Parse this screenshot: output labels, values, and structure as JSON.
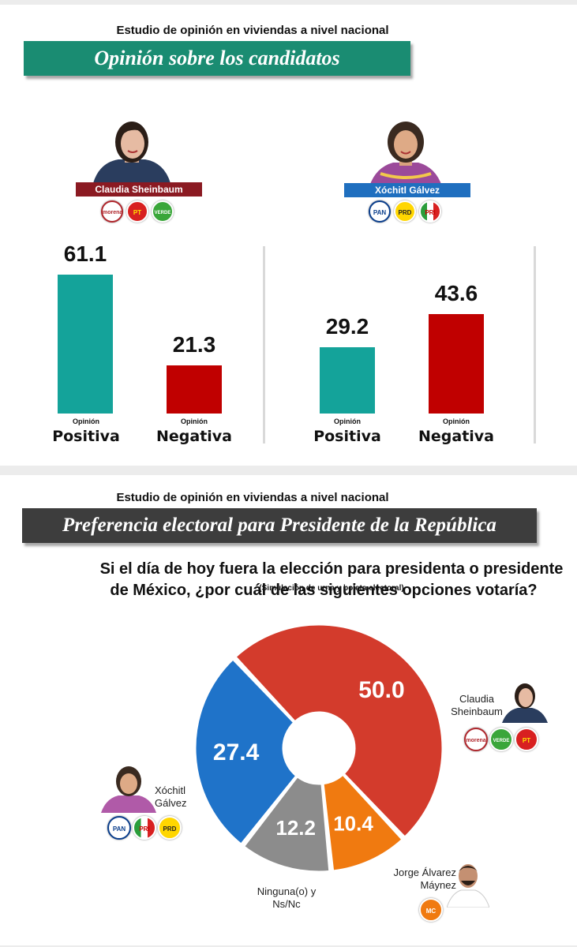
{
  "top": {
    "study_title": "Estudio de opinión en viviendas a nivel nacional",
    "banner_title": "Opinión sobre los candidatos",
    "banner_color": "#1a8c72",
    "candidates": [
      {
        "name": "Claudia Sheinbaum",
        "nameplate_color": "#8b1a22",
        "parties": [
          "morena",
          "PT",
          "VERDE"
        ]
      },
      {
        "name": "Xóchitl Gálvez",
        "nameplate_color": "#1f6fbf",
        "parties": [
          "PAN",
          "PRD",
          "PRI"
        ]
      }
    ],
    "category_small": "Opinión",
    "positive_label": "Positiva",
    "negative_label": "Negativa"
  },
  "bottom": {
    "study_title": "Estudio de opinión en viviendas a nivel nacional",
    "banner_title": "Preferencia electoral para Presidente de la República",
    "banner_color": "#3d3d3d",
    "question_line1": "Si el día de hoy fuera la elección para presidenta o presidente",
    "question_line2": "de México, ¿por cuál de las siguientes opciones votaría?",
    "subnote": "(Simulación de urna y boleta electoral)",
    "labels": {
      "sheinbaum_line1": "Claudia",
      "sheinbaum_line2": "Sheinbaum",
      "galvez_line1": "Xóchitl",
      "galvez_line2": "Gálvez",
      "maynez_line1": "Jorge Álvarez",
      "maynez_line2": "Máynez",
      "ninguna_line1": "Ninguna(o) y",
      "ninguna_line2": "Ns/Nc"
    },
    "party_logos": {
      "sheinbaum": [
        "morena",
        "VERDE",
        "PT"
      ],
      "galvez": [
        "PAN",
        "PRI",
        "PRD"
      ],
      "maynez": [
        "MC"
      ]
    }
  },
  "chart_data": [
    {
      "type": "bar",
      "categories": [
        "Opinión Positiva",
        "Opinión Negativa"
      ],
      "values": [
        61.1,
        21.3
      ],
      "title": "Claudia Sheinbaum",
      "colors": [
        "#14a39a",
        "#c00000"
      ]
    },
    {
      "type": "bar",
      "categories": [
        "Opinión Positiva",
        "Opinión Negativa"
      ],
      "values": [
        29.2,
        43.6
      ],
      "title": "Xóchitl Gálvez",
      "colors": [
        "#14a39a",
        "#c00000"
      ]
    },
    {
      "type": "pie",
      "labels": [
        "Claudia Sheinbaum",
        "Jorge Álvarez Máynez",
        "Ninguna(o) y Ns/Nc",
        "Xóchitl Gálvez"
      ],
      "values": [
        50.0,
        10.4,
        12.2,
        27.4
      ],
      "value_labels": [
        "50.0",
        "10.4",
        "12.2",
        "27.4"
      ],
      "colors": [
        "#d33b2c",
        "#f07a10",
        "#8c8c8c",
        "#1f73c9"
      ],
      "donut": true
    }
  ]
}
